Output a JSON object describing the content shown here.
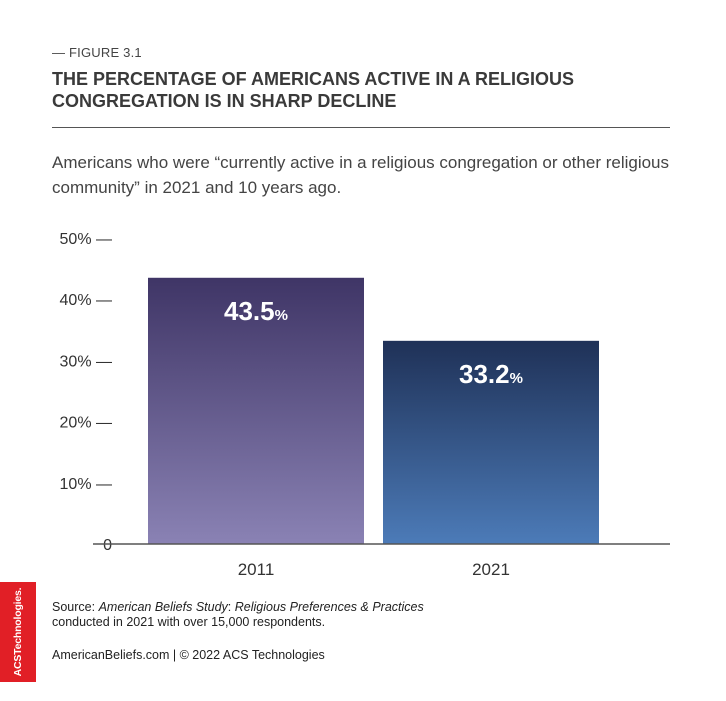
{
  "figure": {
    "label": "— FIGURE 3.1",
    "title": "THE PERCENTAGE OF AMERICANS ACTIVE IN A RELIGIOUS CONGREGATION IS IN SHARP DECLINE",
    "subtitle": "Americans who were “currently active in a religious congregation or other religious community” in 2021 and 10 years ago."
  },
  "chart_data": {
    "type": "bar",
    "categories": [
      "2011",
      "2021"
    ],
    "values": [
      43.5,
      33.2
    ],
    "data_labels": [
      "43.5",
      "33.2"
    ],
    "data_label_suffix": "%",
    "ylim": [
      0,
      50
    ],
    "yticks": [
      0,
      10,
      20,
      30,
      40,
      50
    ],
    "ytick_labels": [
      "0",
      "10% —",
      "20% —",
      "30% —",
      "40% —",
      "50% —"
    ],
    "xlabel": "",
    "ylabel": "",
    "grid": false,
    "colors": {
      "bar_2011_top": "#3f3566",
      "bar_2011_bottom": "#8a82b4",
      "bar_2021_top": "#1f3157",
      "bar_2021_bottom": "#4c7bb8"
    }
  },
  "source": {
    "prefix": "Source: ",
    "study": "American Beliefs Study",
    "separator": ": ",
    "topic": "Religious Preferences & Practices",
    "detail": "conducted in 2021 with over 15,000 respondents."
  },
  "footer": {
    "text": "AmericanBeliefs.com | © 2022 ACS Technologies"
  },
  "brand": {
    "logo_text": "ACSTechnologies.",
    "color": "#e11f26"
  }
}
